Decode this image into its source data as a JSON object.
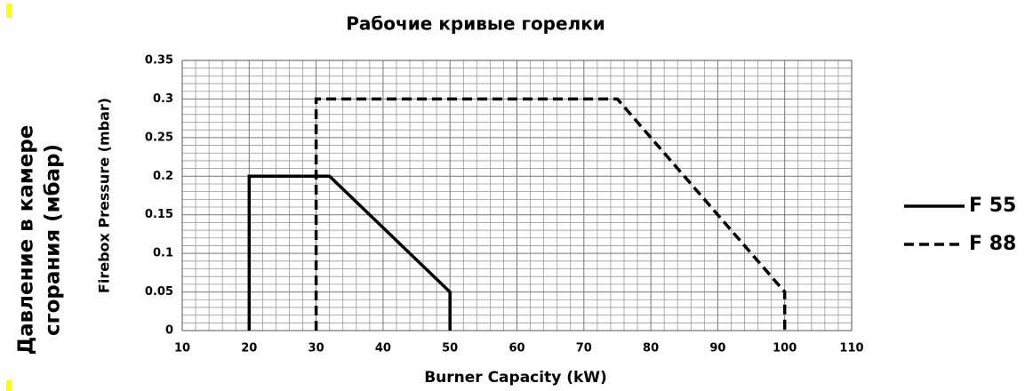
{
  "chart_data": {
    "type": "line",
    "title": "Рабочие кривые горелки",
    "outer_ylabel": [
      "Давление в камере",
      "сгорания (мбар)"
    ],
    "ylabel": "Firebox Pressure (mbar)",
    "xlabel": "Burner Capacity (kW)",
    "xlim": [
      10,
      110
    ],
    "xticks": [
      10,
      20,
      30,
      40,
      50,
      60,
      70,
      80,
      90,
      100,
      110
    ],
    "ylim": [
      0,
      0.35
    ],
    "yticks": [
      0,
      0.05,
      0.1,
      0.15,
      0.2,
      0.25,
      0.3,
      0.35
    ],
    "grid": true,
    "minor_divisions": 5,
    "legend": "right",
    "series": [
      {
        "name": "F 55",
        "color": "#000000",
        "style": "solid",
        "x": [
          20,
          20,
          32,
          50,
          50
        ],
        "values": [
          0,
          0.2,
          0.2,
          0.05,
          0
        ]
      },
      {
        "name": "F 88",
        "color": "#000000",
        "style": "dashed",
        "x": [
          30,
          30,
          75,
          100,
          100
        ],
        "values": [
          0,
          0.3,
          0.3,
          0.05,
          0
        ]
      }
    ]
  }
}
